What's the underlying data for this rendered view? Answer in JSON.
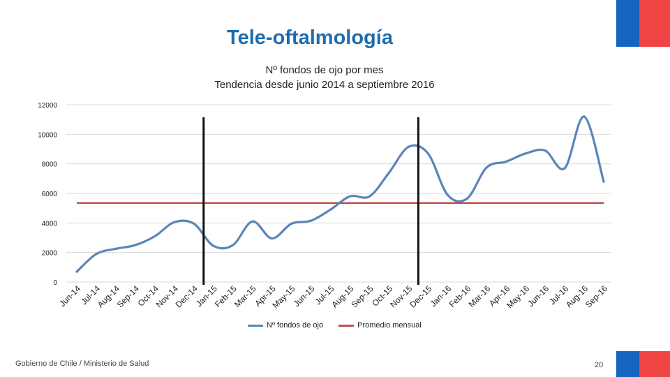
{
  "header": {
    "title": "Tele-oftalmología",
    "subtitle_line1": "Nº fondos de ojo por mes",
    "subtitle_line2": "Tendencia desde junio 2014 a septiembre 2016"
  },
  "footer": {
    "org": "Gobierno de Chile / Ministerio de Salud",
    "page": "20"
  },
  "colors": {
    "flag_blue": "#1565c0",
    "flag_red": "#ee4444",
    "series_line": "#5b85b8",
    "average_line": "#c0504d",
    "title_blue": "#1e6cb0"
  },
  "chart_data": {
    "type": "line",
    "title": "Nº fondos de ojo por mes",
    "subtitle": "Tendencia desde junio 2014 a septiembre 2016",
    "xlabel": "",
    "ylabel": "",
    "categories": [
      "Jun-14",
      "Jul-14",
      "Aug-14",
      "Sep-14",
      "Oct-14",
      "Nov-14",
      "Dec-14",
      "Jan-15",
      "Feb-15",
      "Mar-15",
      "Apr-15",
      "May-15",
      "Jun-15",
      "Jul-15",
      "Aug-15",
      "Sep-15",
      "Oct-15",
      "Nov-15",
      "Dec-15",
      "Jan-16",
      "Feb-16",
      "Mar-16",
      "Apr-16",
      "May-16",
      "Jun-16",
      "Jul-16",
      "Aug-16",
      "Sep-16"
    ],
    "series": [
      {
        "name": "Nº fondos de ojo",
        "values": [
          700,
          1900,
          2250,
          2500,
          3100,
          4050,
          3950,
          2450,
          2500,
          4100,
          2950,
          3950,
          4150,
          4900,
          5800,
          5800,
          7400,
          9150,
          8700,
          5900,
          5650,
          7750,
          8150,
          8700,
          8900,
          7700,
          11200,
          6800
        ]
      },
      {
        "name": "Promedio mensual",
        "values": [
          5350,
          5350,
          5350,
          5350,
          5350,
          5350,
          5350,
          5350,
          5350,
          5350,
          5350,
          5350,
          5350,
          5350,
          5350,
          5350,
          5350,
          5350,
          5350,
          5350,
          5350,
          5350,
          5350,
          5350,
          5350,
          5350,
          5350,
          5350
        ]
      }
    ],
    "ylim": [
      0,
      12000
    ],
    "yticks": [
      0,
      2000,
      4000,
      6000,
      8000,
      10000,
      12000
    ],
    "grid": true,
    "legend": "bottom",
    "markers": [
      {
        "between": [
          "Dec-14",
          "Jan-15"
        ]
      },
      {
        "between": [
          "Nov-15",
          "Dec-15"
        ]
      }
    ]
  }
}
